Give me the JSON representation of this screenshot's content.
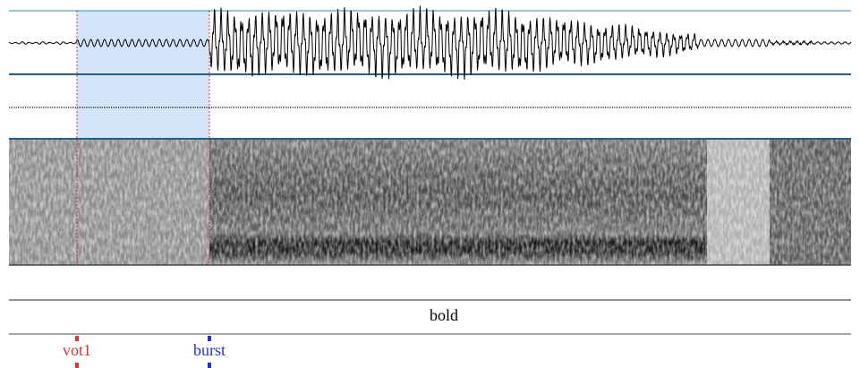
{
  "interval_tier": {
    "intervals": [
      {
        "label": "bold"
      }
    ]
  },
  "point_tier": {
    "points": [
      {
        "label": "vot1"
      },
      {
        "label": "burst"
      }
    ]
  }
}
